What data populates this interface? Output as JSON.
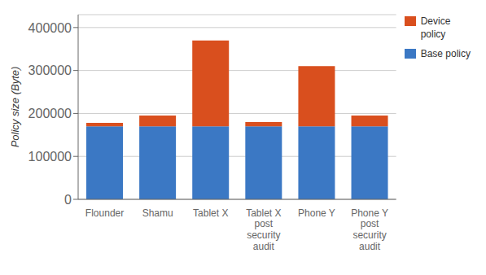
{
  "chart_data": {
    "type": "bar",
    "stacked": true,
    "categories": [
      "Flounder",
      "Shamu",
      "Tablet X",
      "Tablet X\npost\nsecurity\naudit",
      "Phone Y",
      "Phone Y\npost\nsecurity\naudit"
    ],
    "series": [
      {
        "name": "Base policy",
        "color": "#3b78c4",
        "values": [
          170000,
          170000,
          170000,
          170000,
          170000,
          170000
        ]
      },
      {
        "name": "Device\npolicy",
        "color": "#d94f1e",
        "values": [
          8000,
          25000,
          200000,
          10000,
          140000,
          25000
        ]
      }
    ],
    "ylabel": "Policy size (Byte)",
    "ylim": [
      0,
      430000
    ],
    "yticks": [
      0,
      100000,
      200000,
      300000,
      400000
    ],
    "grid": true,
    "legend": "upper right"
  }
}
